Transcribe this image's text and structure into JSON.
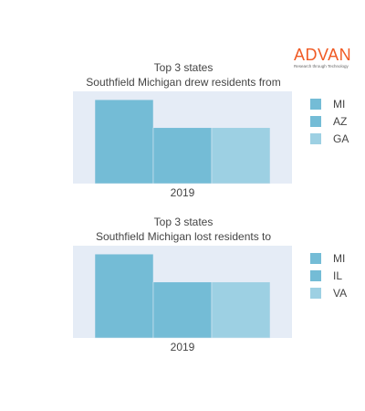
{
  "brand": {
    "name": "ADVAN",
    "tagline": "Research through Technology",
    "color": "#f05a24"
  },
  "chart_data": [
    {
      "type": "bar",
      "title": "Top 3 states",
      "subtitle": "Southfield Michigan drew residents from",
      "categories": [
        "2019"
      ],
      "series": [
        {
          "name": "MI",
          "values": [
            3
          ],
          "color": "#74bcd6"
        },
        {
          "name": "AZ",
          "values": [
            2
          ],
          "color": "#74bcd6"
        },
        {
          "name": "GA",
          "values": [
            2
          ],
          "color": "#9dd0e3"
        }
      ],
      "ylim": [
        0,
        3.3
      ],
      "legend": "right",
      "grid": false
    },
    {
      "type": "bar",
      "title": "Top 3 states",
      "subtitle": "Southfield Michigan lost residents to",
      "categories": [
        "2019"
      ],
      "series": [
        {
          "name": "MI",
          "values": [
            3
          ],
          "color": "#74bcd6"
        },
        {
          "name": "IL",
          "values": [
            2
          ],
          "color": "#74bcd6"
        },
        {
          "name": "VA",
          "values": [
            2
          ],
          "color": "#9dd0e3"
        }
      ],
      "ylim": [
        0,
        3.3
      ],
      "legend": "right",
      "grid": false
    }
  ]
}
